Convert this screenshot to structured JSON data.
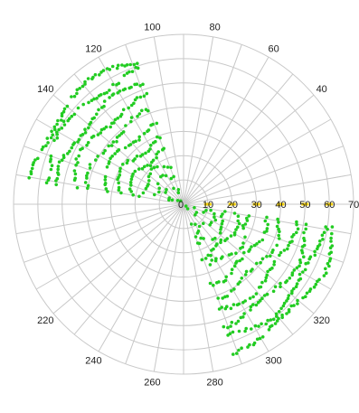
{
  "chart_data": {
    "type": "scatter",
    "coordinate_system": "polar",
    "grid": true,
    "radial_axis": {
      "range": [
        0,
        70
      ],
      "tick_labels": [
        "0",
        "10",
        "20",
        "30",
        "40",
        "50",
        "60",
        "70"
      ],
      "tick_label_angle_deg": 0,
      "tick_highlight_color": "#f5d000"
    },
    "angular_axis": {
      "spoke_step_deg": 10,
      "tick_labels": [
        {
          "angle": 40,
          "text": "40"
        },
        {
          "angle": 60,
          "text": "60"
        },
        {
          "angle": 80,
          "text": "80"
        },
        {
          "angle": 100,
          "text": "100"
        },
        {
          "angle": 120,
          "text": "120"
        },
        {
          "angle": 140,
          "text": "140"
        },
        {
          "angle": 220,
          "text": "220"
        },
        {
          "angle": 240,
          "text": "240"
        },
        {
          "angle": 260,
          "text": "260"
        },
        {
          "angle": 280,
          "text": "280"
        },
        {
          "angle": 300,
          "text": "300"
        },
        {
          "angle": 320,
          "text": "320"
        }
      ]
    },
    "series": [
      {
        "color": "#22cc22",
        "clusters": [
          {
            "theta_range": [
              108,
              172
            ],
            "r_range": [
              2,
              68
            ]
          },
          {
            "theta_range": [
              288,
              352
            ],
            "r_range": [
              2,
              68
            ]
          }
        ],
        "ring_radii": [
          3,
          8,
          13,
          18,
          23,
          28,
          34,
          40,
          46,
          52,
          58,
          63
        ]
      }
    ]
  }
}
